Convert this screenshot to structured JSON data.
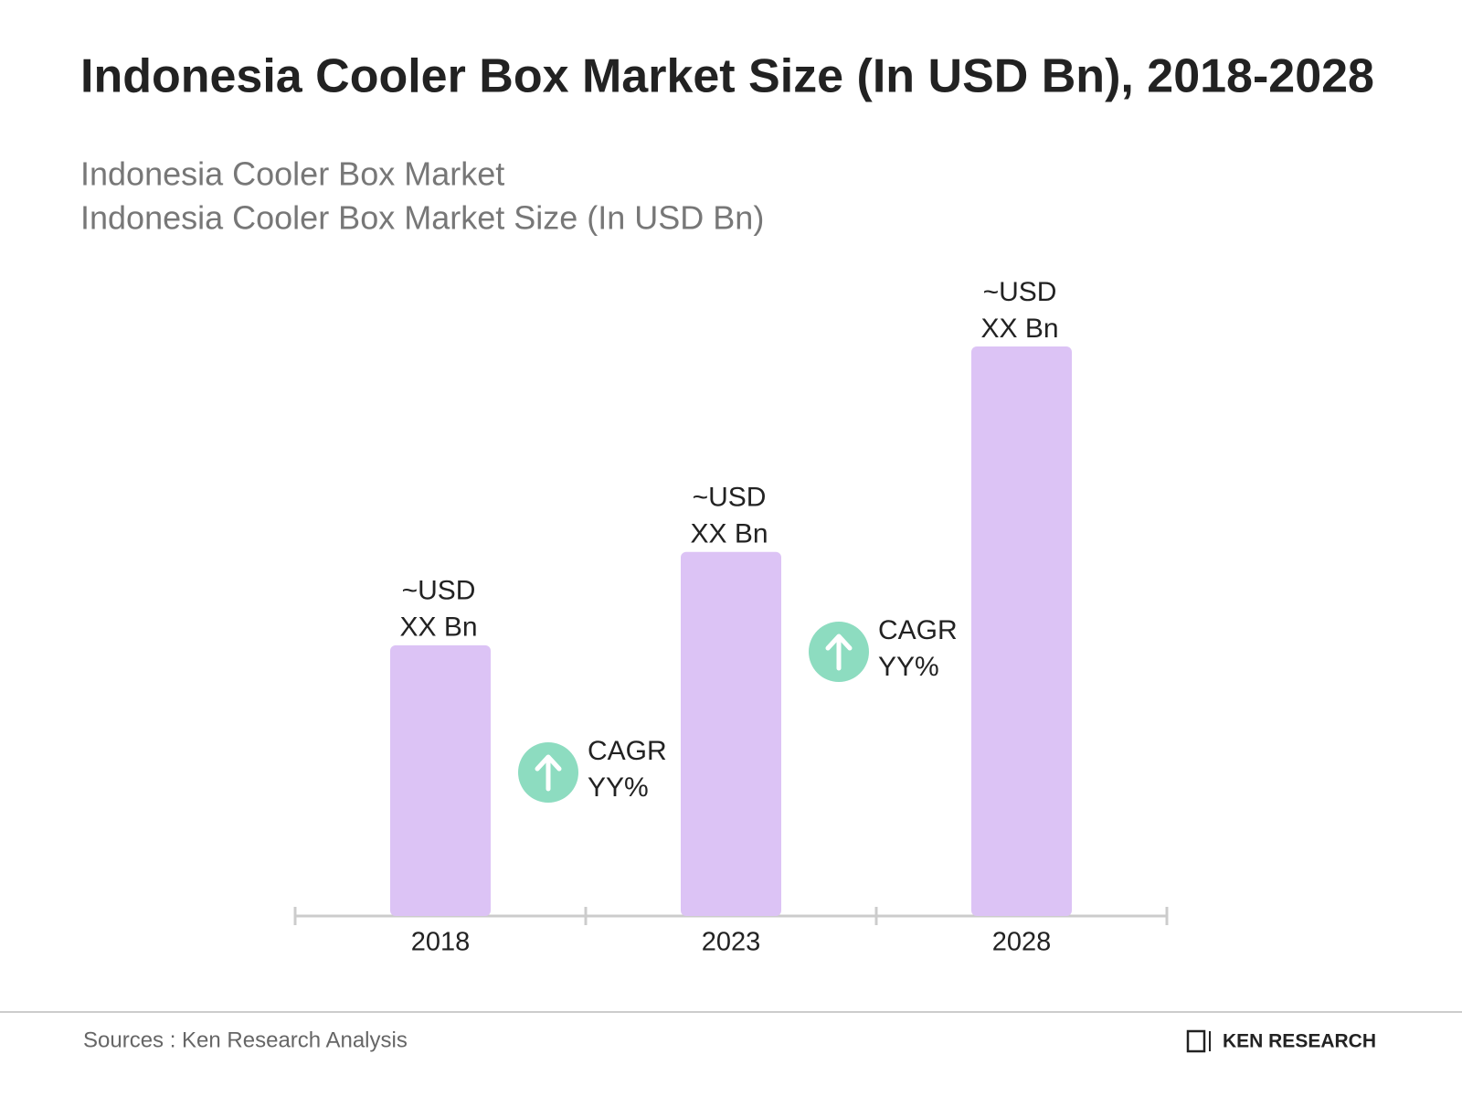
{
  "chart_data": {
    "type": "bar",
    "title": "Indonesia Cooler Box Market Size (In USD Bn), 2018-2028",
    "subtitle": [
      "Indonesia Cooler Box Market",
      "Indonesia Cooler Box Market Size (In USD Bn)"
    ],
    "categories": [
      "2018",
      "2023",
      "2028"
    ],
    "values": [
      29,
      39,
      61
    ],
    "value_labels": [
      [
        "~USD",
        "XX Bn"
      ],
      [
        "~USD",
        "XX Bn"
      ],
      [
        "~USD",
        "XX Bn"
      ]
    ],
    "color": "#dcc3f5",
    "annotations": [
      [
        "CAGR",
        "YY%"
      ],
      [
        "CAGR",
        "YY%"
      ]
    ],
    "annotation_color": "#8ddcc0",
    "source": "Sources : Ken Research Analysis",
    "logo": "KEN RESEARCH"
  }
}
